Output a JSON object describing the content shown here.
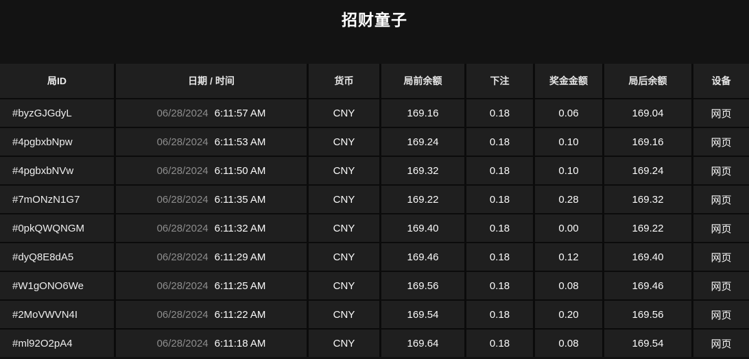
{
  "page": {
    "title": "招财童子"
  },
  "colors": {
    "background": "#131313",
    "cell_background": "#1f1f1f",
    "separator": "#0b0b0b",
    "text_primary": "#fafafa",
    "text_muted": "#8d8d8d"
  },
  "table": {
    "columns": [
      {
        "key": "id",
        "label": "局ID"
      },
      {
        "key": "datetime",
        "label": "日期 / 时间"
      },
      {
        "key": "currency",
        "label": "货币"
      },
      {
        "key": "balance_before",
        "label": "局前余额"
      },
      {
        "key": "bet",
        "label": "下注"
      },
      {
        "key": "prize",
        "label": "奖金金额"
      },
      {
        "key": "balance_after",
        "label": "局后余额"
      },
      {
        "key": "device",
        "label": "设备"
      }
    ],
    "rows": [
      {
        "id": "#byzGJGdyL",
        "date": "06/28/2024",
        "time": "6:11:57 AM",
        "currency": "CNY",
        "balance_before": "169.16",
        "bet": "0.18",
        "prize": "0.06",
        "balance_after": "169.04",
        "device": "网页"
      },
      {
        "id": "#4pgbxbNpw",
        "date": "06/28/2024",
        "time": "6:11:53 AM",
        "currency": "CNY",
        "balance_before": "169.24",
        "bet": "0.18",
        "prize": "0.10",
        "balance_after": "169.16",
        "device": "网页"
      },
      {
        "id": "#4pgbxbNVw",
        "date": "06/28/2024",
        "time": "6:11:50 AM",
        "currency": "CNY",
        "balance_before": "169.32",
        "bet": "0.18",
        "prize": "0.10",
        "balance_after": "169.24",
        "device": "网页"
      },
      {
        "id": "#7mONzN1G7",
        "date": "06/28/2024",
        "time": "6:11:35 AM",
        "currency": "CNY",
        "balance_before": "169.22",
        "bet": "0.18",
        "prize": "0.28",
        "balance_after": "169.32",
        "device": "网页"
      },
      {
        "id": "#0pkQWQNGM",
        "date": "06/28/2024",
        "time": "6:11:32 AM",
        "currency": "CNY",
        "balance_before": "169.40",
        "bet": "0.18",
        "prize": "0.00",
        "balance_after": "169.22",
        "device": "网页"
      },
      {
        "id": "#dyQ8E8dA5",
        "date": "06/28/2024",
        "time": "6:11:29 AM",
        "currency": "CNY",
        "balance_before": "169.46",
        "bet": "0.18",
        "prize": "0.12",
        "balance_after": "169.40",
        "device": "网页"
      },
      {
        "id": "#W1gONO6We",
        "date": "06/28/2024",
        "time": "6:11:25 AM",
        "currency": "CNY",
        "balance_before": "169.56",
        "bet": "0.18",
        "prize": "0.08",
        "balance_after": "169.46",
        "device": "网页"
      },
      {
        "id": "#2MoVWVN4I",
        "date": "06/28/2024",
        "time": "6:11:22 AM",
        "currency": "CNY",
        "balance_before": "169.54",
        "bet": "0.18",
        "prize": "0.20",
        "balance_after": "169.56",
        "device": "网页"
      },
      {
        "id": "#ml92O2pA4",
        "date": "06/28/2024",
        "time": "6:11:18 AM",
        "currency": "CNY",
        "balance_before": "169.64",
        "bet": "0.18",
        "prize": "0.08",
        "balance_after": "169.54",
        "device": "网页"
      }
    ]
  }
}
